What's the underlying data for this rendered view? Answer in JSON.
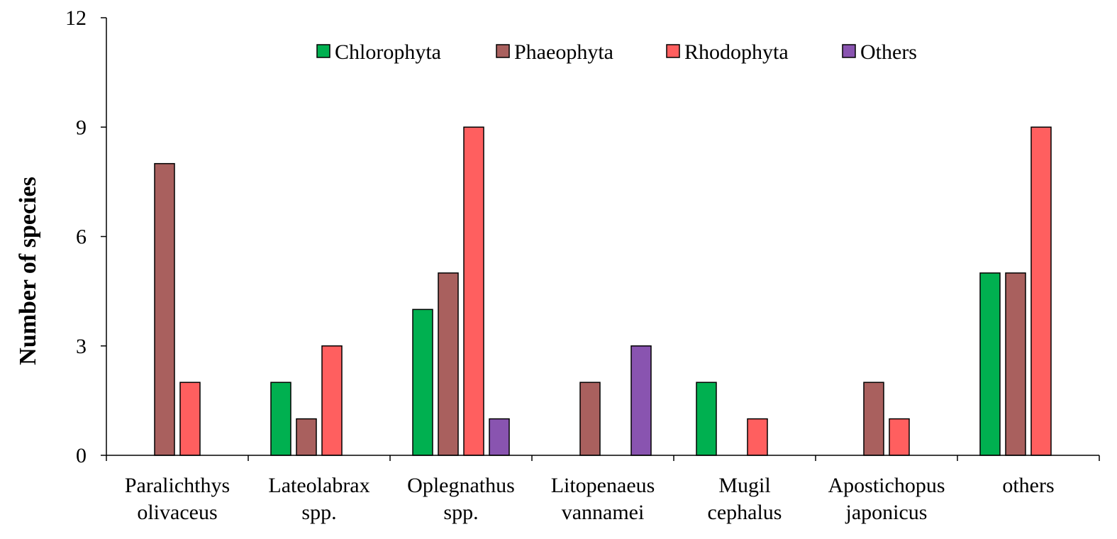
{
  "chart_data": {
    "type": "bar",
    "title": "",
    "xlabel": "",
    "ylabel": "Number of species",
    "ylim": [
      0,
      12
    ],
    "yticks": [
      0,
      3,
      6,
      9,
      12
    ],
    "grid": false,
    "legend_position": "top",
    "categories": [
      [
        "Paralichthys",
        "olivaceus"
      ],
      [
        "Lateolabrax",
        "spp."
      ],
      [
        "Oplegnathus",
        "spp."
      ],
      [
        "Litopenaeus",
        "vannamei"
      ],
      [
        "Mugil",
        "cephalus"
      ],
      [
        "Apostichopus",
        "japonicus"
      ],
      [
        "others"
      ]
    ],
    "series": [
      {
        "name": "Chlorophyta",
        "color": "#00b050",
        "values": [
          0,
          2,
          4,
          0,
          2,
          0,
          5
        ]
      },
      {
        "name": "Phaeophyta",
        "color": "#a9605e",
        "values": [
          8,
          1,
          5,
          2,
          0,
          2,
          5
        ]
      },
      {
        "name": "Rhodophyta",
        "color": "#ff5f5f",
        "values": [
          2,
          3,
          9,
          0,
          1,
          1,
          9
        ]
      },
      {
        "name": "Others",
        "color": "#8954b0",
        "values": [
          0,
          0,
          1,
          3,
          0,
          0,
          0
        ]
      }
    ]
  }
}
